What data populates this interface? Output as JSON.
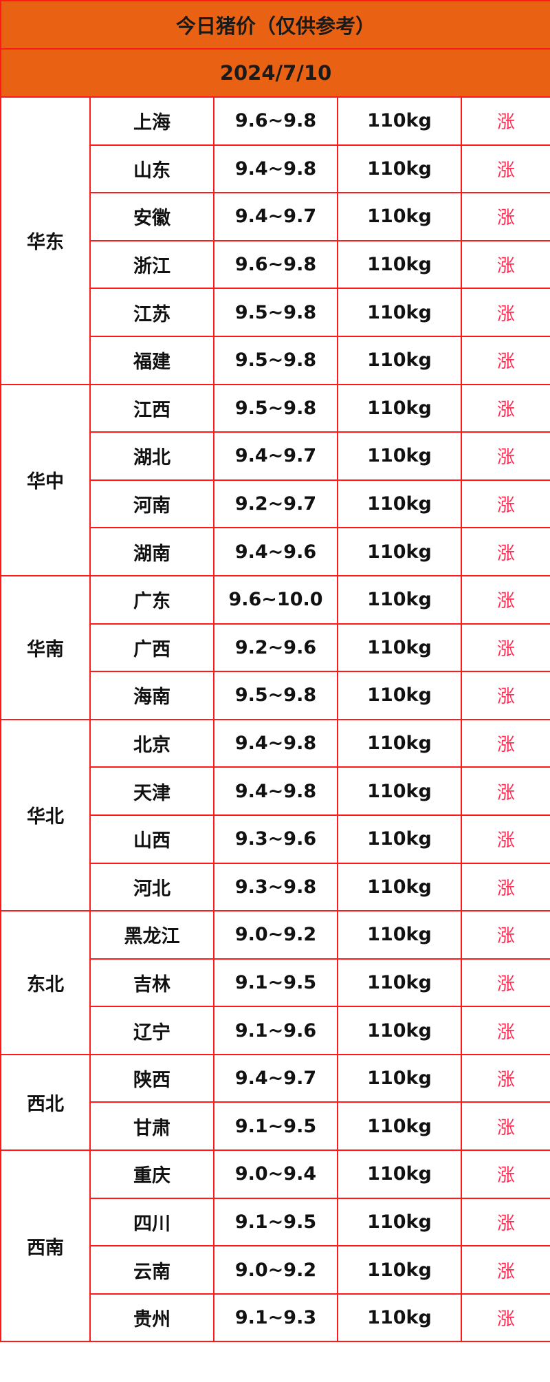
{
  "title": "今日猪价（仅供参考）",
  "date": "2024/7/10",
  "colors": {
    "header_bg": "#e96214",
    "border": "#ff1a1a",
    "trend_up": "#ff2e55"
  },
  "regions": [
    {
      "name": "华东",
      "rows": [
        {
          "province": "上海",
          "price": "9.6~9.8",
          "weight": "110kg",
          "trend": "涨"
        },
        {
          "province": "山东",
          "price": "9.4~9.8",
          "weight": "110kg",
          "trend": "涨"
        },
        {
          "province": "安徽",
          "price": "9.4~9.7",
          "weight": "110kg",
          "trend": "涨"
        },
        {
          "province": "浙江",
          "price": "9.6~9.8",
          "weight": "110kg",
          "trend": "涨"
        },
        {
          "province": "江苏",
          "price": "9.5~9.8",
          "weight": "110kg",
          "trend": "涨"
        },
        {
          "province": "福建",
          "price": "9.5~9.8",
          "weight": "110kg",
          "trend": "涨"
        }
      ]
    },
    {
      "name": "华中",
      "rows": [
        {
          "province": "江西",
          "price": "9.5~9.8",
          "weight": "110kg",
          "trend": "涨"
        },
        {
          "province": "湖北",
          "price": "9.4~9.7",
          "weight": "110kg",
          "trend": "涨"
        },
        {
          "province": "河南",
          "price": "9.2~9.7",
          "weight": "110kg",
          "trend": "涨"
        },
        {
          "province": "湖南",
          "price": "9.4~9.6",
          "weight": "110kg",
          "trend": "涨"
        }
      ]
    },
    {
      "name": "华南",
      "rows": [
        {
          "province": "广东",
          "price": "9.6~10.0",
          "weight": "110kg",
          "trend": "涨"
        },
        {
          "province": "广西",
          "price": "9.2~9.6",
          "weight": "110kg",
          "trend": "涨"
        },
        {
          "province": "海南",
          "price": "9.5~9.8",
          "weight": "110kg",
          "trend": "涨"
        }
      ]
    },
    {
      "name": "华北",
      "rows": [
        {
          "province": "北京",
          "price": "9.4~9.8",
          "weight": "110kg",
          "trend": "涨"
        },
        {
          "province": "天津",
          "price": "9.4~9.8",
          "weight": "110kg",
          "trend": "涨"
        },
        {
          "province": "山西",
          "price": "9.3~9.6",
          "weight": "110kg",
          "trend": "涨"
        },
        {
          "province": "河北",
          "price": "9.3~9.8",
          "weight": "110kg",
          "trend": "涨"
        }
      ]
    },
    {
      "name": "东北",
      "rows": [
        {
          "province": "黑龙江",
          "price": "9.0~9.2",
          "weight": "110kg",
          "trend": "涨"
        },
        {
          "province": "吉林",
          "price": "9.1~9.5",
          "weight": "110kg",
          "trend": "涨"
        },
        {
          "province": "辽宁",
          "price": "9.1~9.6",
          "weight": "110kg",
          "trend": "涨"
        }
      ]
    },
    {
      "name": "西北",
      "rows": [
        {
          "province": "陕西",
          "price": "9.4~9.7",
          "weight": "110kg",
          "trend": "涨"
        },
        {
          "province": "甘肃",
          "price": "9.1~9.5",
          "weight": "110kg",
          "trend": "涨"
        }
      ]
    },
    {
      "name": "西南",
      "rows": [
        {
          "province": "重庆",
          "price": "9.0~9.4",
          "weight": "110kg",
          "trend": "涨"
        },
        {
          "province": "四川",
          "price": "9.1~9.5",
          "weight": "110kg",
          "trend": "涨"
        },
        {
          "province": "云南",
          "price": "9.0~9.2",
          "weight": "110kg",
          "trend": "涨"
        },
        {
          "province": "贵州",
          "price": "9.1~9.3",
          "weight": "110kg",
          "trend": "涨"
        }
      ]
    }
  ]
}
